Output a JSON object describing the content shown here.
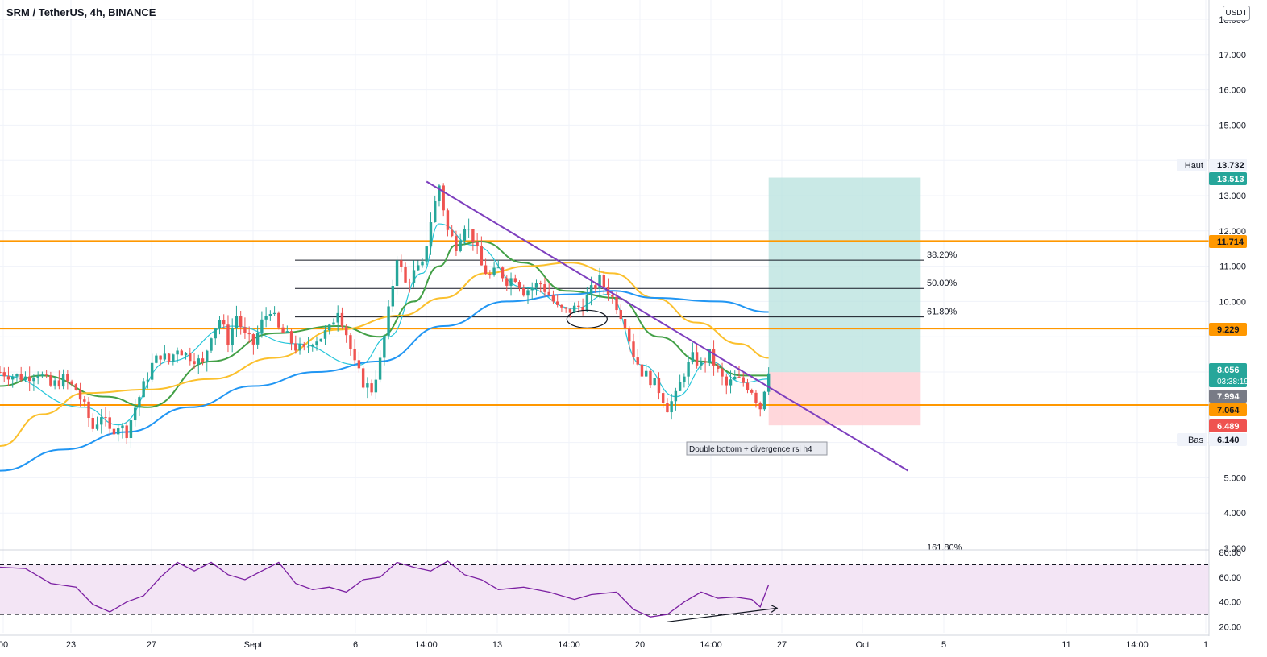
{
  "header": {
    "title": "SRM / TetherUS, 4h, BINANCE",
    "currency_button": "USDT"
  },
  "colors": {
    "up": "#26a69a",
    "down": "#ef5350",
    "orange": "#ff9800",
    "purple": "#7e3fbe",
    "ma_fast": "#26c6da",
    "ma_green": "#43a047",
    "ma_yellow": "#fbc02d",
    "ma_blue": "#2196f3",
    "long_target": "#b2dfdb",
    "long_stop": "#ffcdd2",
    "rsi": "#7b1fa2",
    "rsi_band": "#f3e5f5"
  },
  "chart_data": [
    {
      "type": "candlestick",
      "symbol": "SRM / TetherUS",
      "timeframe": "4h",
      "exchange": "BINANCE",
      "x_ticks": [
        "00",
        "23",
        "27",
        "Sept",
        "6",
        "14:00",
        "13",
        "14:00",
        "20",
        "14:00",
        "27",
        "Oct",
        "5",
        "11",
        "14:00",
        "1"
      ],
      "y_ticks": [
        "3.000",
        "4.000",
        "5.000",
        "6.140",
        "6.489",
        "7.064",
        "7.994",
        "8.056",
        "9.229",
        "10.000",
        "11.000",
        "11.714",
        "12.000",
        "13.000",
        "13.513",
        "13.732",
        "15.000",
        "16.000",
        "17.000",
        "18.000"
      ],
      "ylim": [
        3,
        18
      ],
      "close_path": [
        [
          0,
          8.0
        ],
        [
          3,
          7.9
        ],
        [
          6,
          7.85
        ],
        [
          9,
          8.0
        ],
        [
          12,
          7.6
        ],
        [
          15,
          7.8
        ],
        [
          18,
          7.5
        ],
        [
          20,
          7.0
        ],
        [
          22,
          6.4
        ],
        [
          24,
          6.8
        ],
        [
          26,
          6.3
        ],
        [
          28,
          6.5
        ],
        [
          30,
          6.3
        ],
        [
          32,
          7.0
        ],
        [
          34,
          7.6
        ],
        [
          36,
          8.2
        ],
        [
          38,
          8.5
        ],
        [
          40,
          8.3
        ],
        [
          42,
          8.7
        ],
        [
          44,
          8.5
        ],
        [
          46,
          8.4
        ],
        [
          48,
          8.2
        ],
        [
          50,
          9.1
        ],
        [
          52,
          9.5
        ],
        [
          54,
          8.9
        ],
        [
          56,
          9.6
        ],
        [
          58,
          9.0
        ],
        [
          60,
          8.8
        ],
        [
          62,
          9.4
        ],
        [
          64,
          9.8
        ],
        [
          66,
          9.2
        ],
        [
          68,
          9.0
        ],
        [
          70,
          8.7
        ],
        [
          72,
          8.6
        ],
        [
          74,
          8.9
        ],
        [
          76,
          9.0
        ],
        [
          78,
          9.2
        ],
        [
          80,
          9.8
        ],
        [
          82,
          9.1
        ],
        [
          84,
          8.2
        ],
        [
          86,
          7.7
        ],
        [
          88,
          7.5
        ],
        [
          90,
          8.3
        ],
        [
          92,
          9.7
        ],
        [
          94,
          11.3
        ],
        [
          96,
          10.5
        ],
        [
          98,
          10.8
        ],
        [
          100,
          11.0
        ],
        [
          102,
          12.3
        ],
        [
          104,
          13.3
        ],
        [
          106,
          12.0
        ],
        [
          108,
          11.6
        ],
        [
          110,
          12.2
        ],
        [
          112,
          11.8
        ],
        [
          114,
          11.0
        ],
        [
          116,
          10.7
        ],
        [
          118,
          10.9
        ],
        [
          120,
          10.6
        ],
        [
          122,
          10.7
        ],
        [
          124,
          10.3
        ],
        [
          126,
          10.4
        ],
        [
          128,
          10.5
        ],
        [
          130,
          10.2
        ],
        [
          132,
          9.8
        ],
        [
          134,
          9.7
        ],
        [
          136,
          9.8
        ],
        [
          138,
          9.9
        ],
        [
          140,
          10.3
        ],
        [
          142,
          10.6
        ],
        [
          144,
          10.3
        ],
        [
          146,
          9.9
        ],
        [
          148,
          9.4
        ],
        [
          150,
          8.5
        ],
        [
          152,
          8.0
        ],
        [
          154,
          7.8
        ],
        [
          156,
          7.5
        ],
        [
          158,
          7.0
        ],
        [
          160,
          7.3
        ],
        [
          162,
          8.0
        ],
        [
          164,
          8.4
        ],
        [
          166,
          8.2
        ],
        [
          168,
          8.5
        ],
        [
          170,
          8.0
        ],
        [
          172,
          7.6
        ],
        [
          174,
          7.8
        ],
        [
          176,
          7.7
        ],
        [
          178,
          7.5
        ],
        [
          180,
          7.0
        ],
        [
          182,
          8.1
        ]
      ],
      "horizontal_levels": [
        11.714,
        9.229,
        7.064
      ],
      "fibonacci": [
        {
          "level": "38.20%",
          "value": 11.17
        },
        {
          "level": "50.00%",
          "value": 10.37
        },
        {
          "level": "61.80%",
          "value": 9.56
        },
        {
          "level": "161.80%",
          "value": 2.9
        }
      ],
      "trendline": {
        "from": [
          101,
          13.4
        ],
        "to": [
          215,
          5.2
        ]
      },
      "moving_averages": [
        {
          "color_key": "ma_fast",
          "points": [
            [
              0,
              7.9
            ],
            [
              20,
              7.0
            ],
            [
              28,
              6.5
            ],
            [
              40,
              8.3
            ],
            [
              55,
              9.3
            ],
            [
              70,
              8.8
            ],
            [
              85,
              8.2
            ],
            [
              92,
              9.0
            ],
            [
              100,
              10.8
            ],
            [
              104,
              12.2
            ],
            [
              112,
              11.6
            ],
            [
              124,
              10.4
            ],
            [
              136,
              9.8
            ],
            [
              144,
              10.2
            ],
            [
              152,
              8.2
            ],
            [
              160,
              7.3
            ],
            [
              168,
              8.3
            ],
            [
              176,
              7.7
            ],
            [
              182,
              7.8
            ]
          ]
        },
        {
          "color_key": "ma_green",
          "points": [
            [
              0,
              7.6
            ],
            [
              10,
              7.9
            ],
            [
              25,
              7.3
            ],
            [
              35,
              7.0
            ],
            [
              50,
              8.3
            ],
            [
              65,
              9.1
            ],
            [
              80,
              9.3
            ],
            [
              90,
              9.0
            ],
            [
              98,
              10.0
            ],
            [
              104,
              11.0
            ],
            [
              108,
              11.6
            ],
            [
              114,
              11.7
            ],
            [
              124,
              11.1
            ],
            [
              134,
              10.3
            ],
            [
              146,
              10.1
            ],
            [
              156,
              9.0
            ],
            [
              166,
              8.3
            ],
            [
              176,
              7.9
            ],
            [
              182,
              7.9
            ]
          ]
        },
        {
          "color_key": "ma_yellow",
          "points": [
            [
              0,
              5.9
            ],
            [
              10,
              6.8
            ],
            [
              20,
              7.4
            ],
            [
              35,
              7.5
            ],
            [
              50,
              7.8
            ],
            [
              65,
              8.4
            ],
            [
              80,
              9.2
            ],
            [
              95,
              9.6
            ],
            [
              105,
              10.1
            ],
            [
              115,
              10.8
            ],
            [
              125,
              11.0
            ],
            [
              135,
              11.1
            ],
            [
              145,
              10.8
            ],
            [
              155,
              10.1
            ],
            [
              165,
              9.4
            ],
            [
              175,
              8.8
            ],
            [
              182,
              8.4
            ]
          ]
        },
        {
          "color_key": "ma_blue",
          "points": [
            [
              0,
              5.2
            ],
            [
              15,
              5.8
            ],
            [
              30,
              6.3
            ],
            [
              45,
              7.0
            ],
            [
              60,
              7.6
            ],
            [
              75,
              8.0
            ],
            [
              90,
              8.3
            ],
            [
              105,
              9.3
            ],
            [
              120,
              10.0
            ],
            [
              135,
              10.2
            ],
            [
              145,
              10.3
            ],
            [
              155,
              10.1
            ],
            [
              170,
              10.0
            ],
            [
              182,
              9.7
            ]
          ]
        }
      ],
      "trade_position": {
        "type": "long",
        "start_x": 182,
        "end_x": 218,
        "target": 13.513,
        "entry": 7.994,
        "stop": 6.489
      },
      "ellipse_note_at": [
        139,
        9.5
      ],
      "annotation": "Double bottom + divergence rsi h4",
      "price_labels": [
        {
          "text": "Haut",
          "value": "13.732"
        },
        {
          "text": "",
          "value": "13.513"
        },
        {
          "text": "",
          "value": "11.714"
        },
        {
          "text": "",
          "value": "9.229"
        },
        {
          "text": "",
          "value": "8.056",
          "sub": "03:38:19"
        },
        {
          "text": "",
          "value": "7.994"
        },
        {
          "text": "",
          "value": "7.064"
        },
        {
          "text": "",
          "value": "6.489"
        },
        {
          "text": "Bas",
          "value": "6.140"
        }
      ]
    },
    {
      "type": "line",
      "indicator": "rsi",
      "ylim": [
        20,
        80
      ],
      "y_ticks": [
        "20.00",
        "40.00",
        "60.00",
        "80.00"
      ],
      "bands": [
        30,
        70
      ],
      "values": [
        [
          0,
          68
        ],
        [
          6,
          67
        ],
        [
          12,
          55
        ],
        [
          18,
          52
        ],
        [
          22,
          38
        ],
        [
          26,
          32
        ],
        [
          30,
          40
        ],
        [
          34,
          45
        ],
        [
          38,
          60
        ],
        [
          42,
          72
        ],
        [
          46,
          65
        ],
        [
          50,
          72
        ],
        [
          54,
          62
        ],
        [
          58,
          58
        ],
        [
          62,
          65
        ],
        [
          66,
          72
        ],
        [
          70,
          55
        ],
        [
          74,
          50
        ],
        [
          78,
          52
        ],
        [
          82,
          48
        ],
        [
          86,
          58
        ],
        [
          90,
          60
        ],
        [
          94,
          72
        ],
        [
          98,
          68
        ],
        [
          102,
          65
        ],
        [
          106,
          73
        ],
        [
          110,
          62
        ],
        [
          114,
          58
        ],
        [
          118,
          50
        ],
        [
          124,
          52
        ],
        [
          130,
          48
        ],
        [
          136,
          42
        ],
        [
          140,
          46
        ],
        [
          146,
          48
        ],
        [
          150,
          34
        ],
        [
          154,
          28
        ],
        [
          158,
          30
        ],
        [
          162,
          40
        ],
        [
          166,
          48
        ],
        [
          170,
          43
        ],
        [
          174,
          44
        ],
        [
          178,
          42
        ],
        [
          180,
          36
        ],
        [
          182,
          54
        ]
      ],
      "divergence_arrow": {
        "from": [
          158,
          24
        ],
        "to": [
          184,
          35
        ]
      }
    }
  ]
}
